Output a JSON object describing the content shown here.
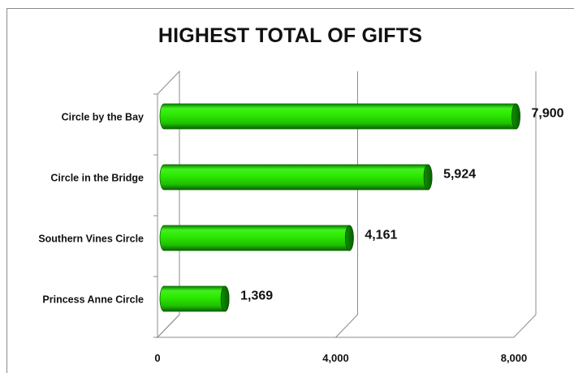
{
  "chart_data": {
    "type": "bar",
    "orientation": "horizontal",
    "title": "HIGHEST TOTAL OF GIFTS",
    "categories": [
      "Circle by the Bay",
      "Circle in the Bridge",
      "Southern Vines Circle",
      "Princess Anne Circle"
    ],
    "values": [
      7900,
      5924,
      4161,
      1369
    ],
    "value_labels": [
      "7,900",
      "5,924",
      "4,161",
      "1,369"
    ],
    "x_ticks": [
      0,
      4000,
      8000
    ],
    "x_tick_labels": [
      "0",
      "4,000",
      "8,000"
    ],
    "xlim": [
      0,
      8000
    ],
    "grid": true,
    "legend": "none",
    "bar_color": "#22dd00"
  }
}
